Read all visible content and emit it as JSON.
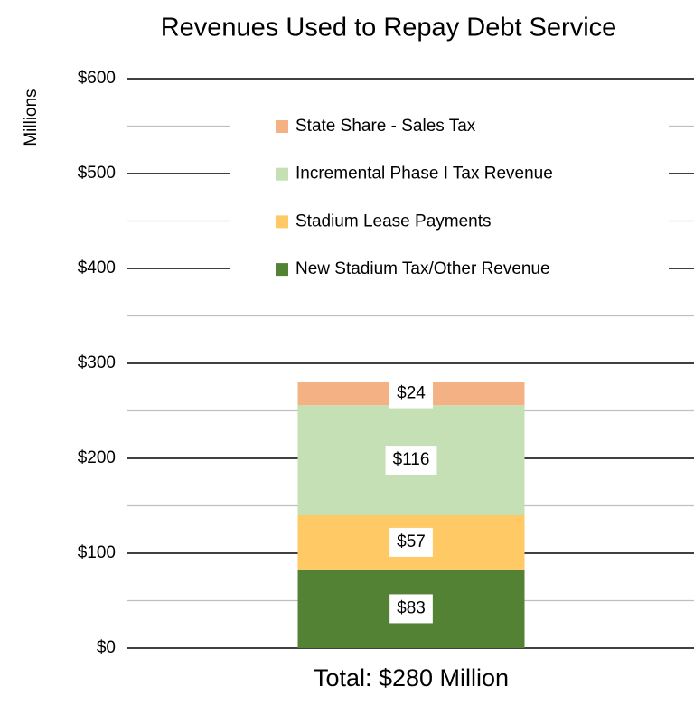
{
  "chart_data": {
    "type": "stacked_bar",
    "title": "Revenues Used to Repay Debt Service",
    "y_label": "Millions",
    "categories": [
      "Total: $280 Million"
    ],
    "series": [
      {
        "name": "New Stadium Tax/Other Revenue",
        "color": "#548235",
        "values": [
          83
        ],
        "value_labels": [
          "$83"
        ]
      },
      {
        "name": "Stadium Lease Payments",
        "color": "#ffc966",
        "values": [
          57
        ],
        "value_labels": [
          "$57"
        ]
      },
      {
        "name": "Incremental Phase I Tax Revenue",
        "color": "#c5e0b4",
        "values": [
          116
        ],
        "value_labels": [
          "$116"
        ]
      },
      {
        "name": "State Share - Sales Tax",
        "color": "#f4b183",
        "values": [
          24
        ],
        "value_labels": [
          "$24"
        ]
      }
    ],
    "ylim": [
      0,
      600
    ],
    "yticks": [
      {
        "value": 0,
        "label": "$0"
      },
      {
        "value": 100,
        "label": "$100"
      },
      {
        "value": 200,
        "label": "$200"
      },
      {
        "value": 300,
        "label": "$300"
      },
      {
        "value": 400,
        "label": "$400"
      },
      {
        "value": 500,
        "label": "$500"
      },
      {
        "value": 600,
        "label": "$600"
      }
    ],
    "minor_yticks": [
      50,
      150,
      250,
      350,
      450,
      550
    ],
    "grid": true,
    "grid_color": "#000000",
    "minor_grid_color": "#bfbfbf",
    "legend_position": "top"
  }
}
